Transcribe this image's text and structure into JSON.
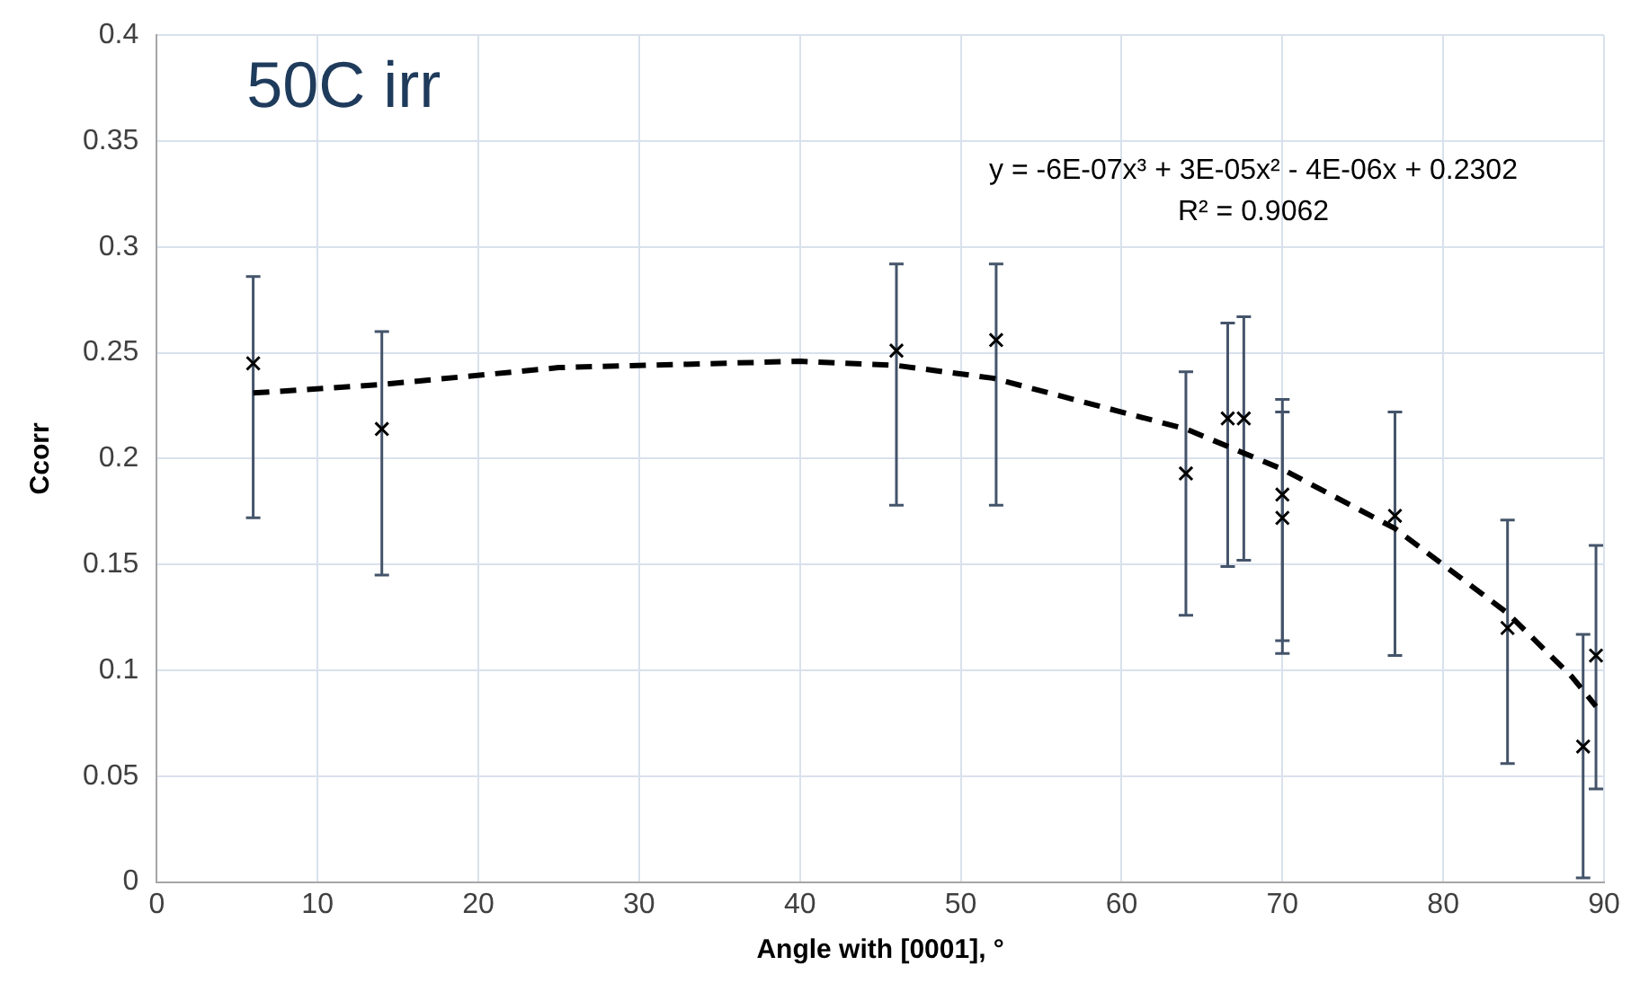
{
  "chart_data": {
    "type": "scatter",
    "title": "50C irr",
    "xlabel": "Angle with [0001], °",
    "ylabel": "Ccorr",
    "xlim": [
      0,
      90
    ],
    "xticks": [
      0,
      10,
      20,
      30,
      40,
      50,
      60,
      70,
      80,
      90
    ],
    "ylim": [
      0,
      0.4
    ],
    "yticks": [
      0,
      0.05,
      0.1,
      0.15,
      0.2,
      0.25,
      0.3,
      0.35,
      0.4
    ],
    "grid": true,
    "legend": false,
    "annotations": [
      "y = -6E-07x³ + 3E-05x² - 4E-06x + 0.2302",
      "R² = 0.9062"
    ],
    "series": [
      {
        "type": "scatter",
        "color": "#000000",
        "marker": "cross",
        "x": [
          6,
          14,
          46,
          52.2,
          64,
          66.6,
          67.6,
          70,
          70,
          77,
          84,
          88.7,
          89.5
        ],
        "values": [
          0.245,
          0.214,
          0.251,
          0.256,
          0.193,
          0.219,
          0.219,
          0.183,
          0.172,
          0.173,
          0.12,
          0.064,
          0.107
        ],
        "errors": [
          [
            0.172,
            0.286
          ],
          [
            0.145,
            0.26
          ],
          [
            0.178,
            0.292
          ],
          [
            0.178,
            0.292
          ],
          [
            0.126,
            0.241
          ],
          [
            0.149,
            0.264
          ],
          [
            0.152,
            0.267
          ],
          [
            0.114,
            0.228
          ],
          [
            0.108,
            0.222
          ],
          [
            0.107,
            0.222
          ],
          [
            0.056,
            0.171
          ],
          [
            0.002,
            0.117
          ],
          [
            0.044,
            0.159
          ]
        ]
      },
      {
        "type": "line",
        "color": "#000000",
        "marker": "none",
        "line_style": "dashed",
        "x": [
          6,
          14,
          25,
          40,
          46,
          52,
          60,
          64,
          70,
          77,
          84,
          88,
          89.5
        ],
        "values": [
          0.231,
          0.235,
          0.243,
          0.246,
          0.244,
          0.238,
          0.222,
          0.214,
          0.195,
          0.167,
          0.127,
          0.097,
          0.083
        ]
      }
    ]
  }
}
